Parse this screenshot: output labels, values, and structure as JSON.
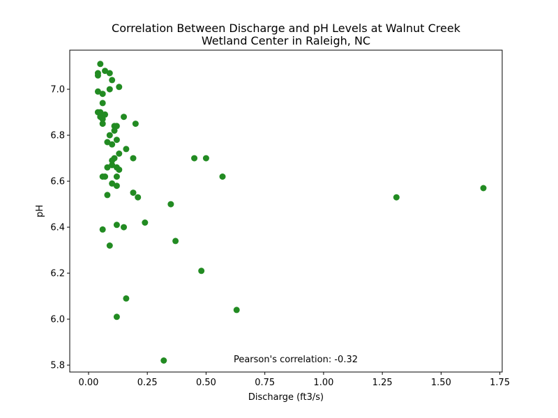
{
  "chart_data": {
    "type": "scatter",
    "title_lines": [
      "Correlation Between Discharge and pH Levels at Walnut Creek",
      "Wetland Center in Raleigh, NC"
    ],
    "xlabel": "Discharge (ft3/s)",
    "ylabel": "pH",
    "xlim": [
      -0.08,
      1.76
    ],
    "ylim": [
      5.77,
      7.17
    ],
    "xticks": [
      "0.00",
      "0.25",
      "0.50",
      "0.75",
      "1.00",
      "1.25",
      "1.50",
      "1.75"
    ],
    "yticks": [
      "5.8",
      "6.0",
      "6.2",
      "6.4",
      "6.6",
      "6.8",
      "7.0"
    ],
    "grid": false,
    "point_color": "#228B22",
    "annotation": "Pearson's correlation: -0.32",
    "points": [
      {
        "x": 0.05,
        "y": 7.11
      },
      {
        "x": 0.07,
        "y": 7.08
      },
      {
        "x": 0.04,
        "y": 7.07
      },
      {
        "x": 0.09,
        "y": 7.07
      },
      {
        "x": 0.04,
        "y": 7.06
      },
      {
        "x": 0.1,
        "y": 7.04
      },
      {
        "x": 0.13,
        "y": 7.01
      },
      {
        "x": 0.09,
        "y": 7.0
      },
      {
        "x": 0.04,
        "y": 6.99
      },
      {
        "x": 0.06,
        "y": 6.98
      },
      {
        "x": 0.06,
        "y": 6.94
      },
      {
        "x": 0.04,
        "y": 6.9
      },
      {
        "x": 0.05,
        "y": 6.9
      },
      {
        "x": 0.07,
        "y": 6.89
      },
      {
        "x": 0.05,
        "y": 6.88
      },
      {
        "x": 0.06,
        "y": 6.87
      },
      {
        "x": 0.15,
        "y": 6.88
      },
      {
        "x": 0.06,
        "y": 6.85
      },
      {
        "x": 0.2,
        "y": 6.85
      },
      {
        "x": 0.11,
        "y": 6.84
      },
      {
        "x": 0.12,
        "y": 6.84
      },
      {
        "x": 0.11,
        "y": 6.82
      },
      {
        "x": 0.09,
        "y": 6.8
      },
      {
        "x": 0.12,
        "y": 6.78
      },
      {
        "x": 0.08,
        "y": 6.77
      },
      {
        "x": 0.1,
        "y": 6.76
      },
      {
        "x": 0.16,
        "y": 6.74
      },
      {
        "x": 0.13,
        "y": 6.72
      },
      {
        "x": 0.11,
        "y": 6.7
      },
      {
        "x": 0.19,
        "y": 6.7
      },
      {
        "x": 0.45,
        "y": 6.7
      },
      {
        "x": 0.5,
        "y": 6.7
      },
      {
        "x": 0.1,
        "y": 6.69
      },
      {
        "x": 0.1,
        "y": 6.67
      },
      {
        "x": 0.08,
        "y": 6.66
      },
      {
        "x": 0.12,
        "y": 6.66
      },
      {
        "x": 0.13,
        "y": 6.65
      },
      {
        "x": 0.06,
        "y": 6.62
      },
      {
        "x": 0.07,
        "y": 6.62
      },
      {
        "x": 0.12,
        "y": 6.62
      },
      {
        "x": 0.57,
        "y": 6.62
      },
      {
        "x": 0.1,
        "y": 6.59
      },
      {
        "x": 0.12,
        "y": 6.58
      },
      {
        "x": 1.68,
        "y": 6.57
      },
      {
        "x": 0.19,
        "y": 6.55
      },
      {
        "x": 0.08,
        "y": 6.54
      },
      {
        "x": 0.21,
        "y": 6.53
      },
      {
        "x": 1.31,
        "y": 6.53
      },
      {
        "x": 0.35,
        "y": 6.5
      },
      {
        "x": 0.24,
        "y": 6.42
      },
      {
        "x": 0.12,
        "y": 6.41
      },
      {
        "x": 0.15,
        "y": 6.4
      },
      {
        "x": 0.06,
        "y": 6.39
      },
      {
        "x": 0.37,
        "y": 6.34
      },
      {
        "x": 0.09,
        "y": 6.32
      },
      {
        "x": 0.48,
        "y": 6.21
      },
      {
        "x": 0.16,
        "y": 6.09
      },
      {
        "x": 0.63,
        "y": 6.04
      },
      {
        "x": 0.12,
        "y": 6.01
      },
      {
        "x": 0.32,
        "y": 5.82
      }
    ]
  }
}
